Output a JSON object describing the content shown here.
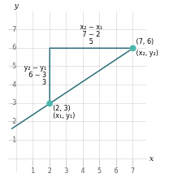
{
  "chart_data": {
    "type": "line",
    "x_label": "x",
    "y_label": "y",
    "xlim": [
      -0.5,
      7.8
    ],
    "ylim": [
      -0.7,
      8.0
    ],
    "xticks": [
      1,
      2,
      3,
      4,
      5,
      6,
      7
    ],
    "yticks": [
      1,
      2,
      3,
      4,
      5,
      6,
      7
    ],
    "grid": true,
    "series": [
      {
        "type": "line",
        "color": "#2d6b7a",
        "x": [
          -0.3,
          7
        ],
        "values": [
          1.62,
          6
        ]
      },
      {
        "type": "line",
        "color": "#2d6b7a",
        "x": [
          2,
          2,
          7
        ],
        "values": [
          3,
          6,
          6
        ]
      },
      {
        "type": "scatter",
        "color": "#4db6ac",
        "x": [
          2,
          7
        ],
        "values": [
          3,
          6
        ]
      }
    ],
    "annotations": [
      [
        "(2, 3)",
        "(x₁, y₁)"
      ],
      [
        "(7, 6)",
        "(x₂, y₂)"
      ],
      [
        "y₂ − y₁",
        "6 − 3",
        "3"
      ],
      [
        "x₂ − x₁",
        "7 − 2",
        "5"
      ]
    ]
  }
}
